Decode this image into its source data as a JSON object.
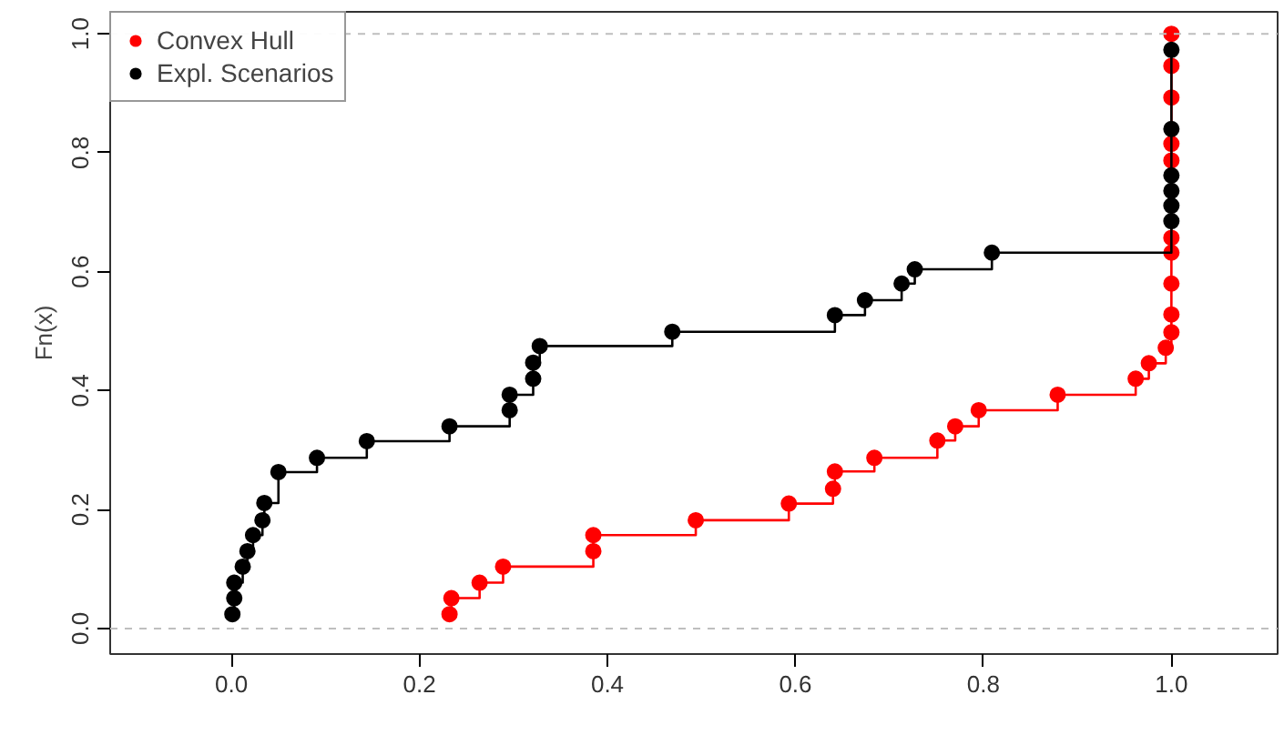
{
  "chart_data": {
    "type": "step",
    "ylabel": "Fn(x)",
    "xlim": [
      -0.129,
      1.113
    ],
    "ylim": [
      -0.043,
      1.037
    ],
    "xticks": [
      {
        "value": 0,
        "label": "0.0"
      },
      {
        "value": 0.2,
        "label": "0.2"
      },
      {
        "value": 0.4,
        "label": "0.4"
      },
      {
        "value": 0.6,
        "label": "0.6"
      },
      {
        "value": 0.8,
        "label": "0.8"
      },
      {
        "value": 1,
        "label": "1.0"
      }
    ],
    "yticks": [
      {
        "value": 0,
        "label": "0.0"
      },
      {
        "value": 0.2,
        "label": "0.2"
      },
      {
        "value": 0.4,
        "label": "0.4"
      },
      {
        "value": 0.6,
        "label": "0.6"
      },
      {
        "value": 0.8,
        "label": "0.8"
      },
      {
        "value": 1,
        "label": "1.0"
      }
    ],
    "series": [
      {
        "name": "Convex Hull",
        "color": "#ff0000",
        "x": [
          0.232,
          0.234,
          0.264,
          0.289,
          0.385,
          0.385,
          0.494,
          0.593,
          0.64,
          0.642,
          0.684,
          0.751,
          0.77,
          0.795,
          0.879,
          0.962,
          0.976,
          0.994,
          1.0,
          1.0,
          1.0,
          1.0,
          1.0,
          1.0,
          1.0,
          1.0,
          1.0,
          1.0
        ],
        "values": [
          0.024,
          0.051,
          0.077,
          0.104,
          0.13,
          0.157,
          0.182,
          0.21,
          0.235,
          0.264,
          0.287,
          0.316,
          0.34,
          0.367,
          0.393,
          0.42,
          0.446,
          0.472,
          0.498,
          0.528,
          0.58,
          0.632,
          0.657,
          0.787,
          0.815,
          0.893,
          0.946,
          1.0
        ]
      },
      {
        "name": "Expl. Scenarios",
        "color": "#000000",
        "x": [
          0.001,
          0.003,
          0.003,
          0.012,
          0.017,
          0.023,
          0.033,
          0.035,
          0.05,
          0.091,
          0.144,
          0.232,
          0.296,
          0.296,
          0.321,
          0.321,
          0.328,
          0.469,
          0.642,
          0.674,
          0.713,
          0.727,
          0.809,
          1.0,
          1.0,
          1.0,
          1.0,
          1.0,
          1.0
        ],
        "values": [
          0.024,
          0.051,
          0.077,
          0.104,
          0.13,
          0.157,
          0.182,
          0.211,
          0.263,
          0.287,
          0.315,
          0.34,
          0.367,
          0.393,
          0.42,
          0.447,
          0.475,
          0.499,
          0.527,
          0.552,
          0.58,
          0.604,
          0.632,
          0.685,
          0.711,
          0.736,
          0.762,
          0.84,
          0.973
        ]
      }
    ],
    "ref_lines": [
      {
        "axis": "y",
        "value": 0,
        "color": "#bebebe",
        "line_style": "dashed"
      },
      {
        "axis": "y",
        "value": 1,
        "color": "#bebebe",
        "line_style": "dashed"
      }
    ],
    "marker": "circle",
    "legend": "top left",
    "grid": false
  }
}
